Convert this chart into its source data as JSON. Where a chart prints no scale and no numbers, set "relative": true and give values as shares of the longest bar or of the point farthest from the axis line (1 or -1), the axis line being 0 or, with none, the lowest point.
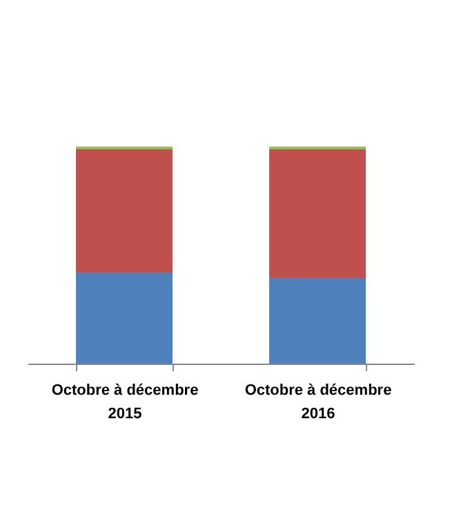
{
  "chart_data": {
    "type": "bar",
    "relative": true,
    "stacked": true,
    "categories": [
      "Octobre à décembre 2015",
      "Octobre à décembre 2016"
    ],
    "series": [
      {
        "color": "#4f81bd",
        "values": [
          0.42,
          0.395
        ]
      },
      {
        "color": "#c0504d",
        "values": [
          0.567,
          0.592
        ]
      },
      {
        "color": "#9bbb59",
        "values": [
          0.013,
          0.013
        ]
      }
    ]
  }
}
